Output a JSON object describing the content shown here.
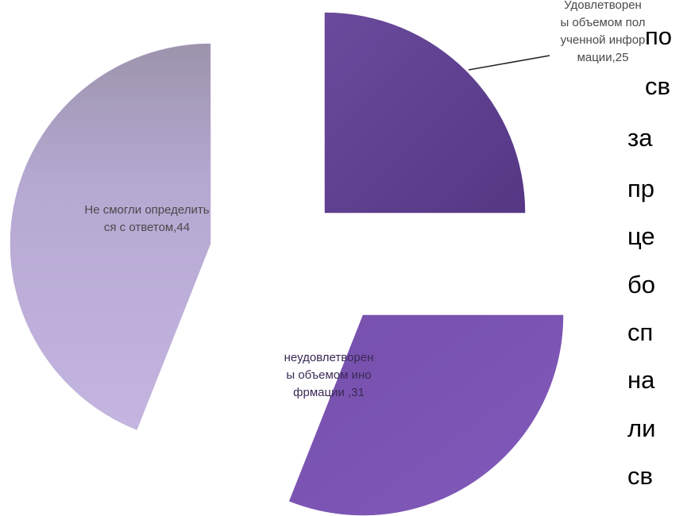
{
  "chart_data": {
    "type": "pie",
    "labels": [
      "Удовлетворены объемом полученной информации,25",
      "неудовлетворены объемом инофрмации ,31",
      "Не смогли определиться с ответом,44"
    ],
    "values": [
      25,
      31,
      44
    ],
    "colors": [
      "#62438f",
      "#7b55b2",
      "#b6a6d0"
    ]
  },
  "side_text": [
    "по",
    "св",
    "за",
    "пр",
    "це",
    "бо",
    "сп",
    "на",
    "ли",
    "св"
  ]
}
